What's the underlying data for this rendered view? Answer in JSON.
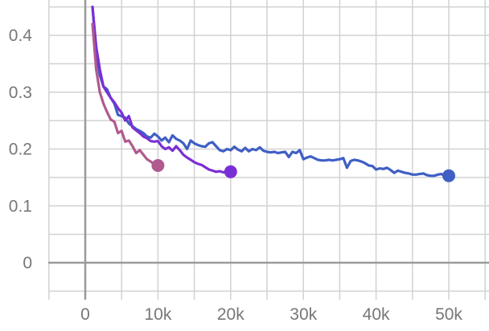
{
  "chart_data": {
    "type": "line",
    "title": "",
    "xlabel": "",
    "ylabel": "",
    "xlim": [
      -5000,
      55000
    ],
    "ylim": [
      -0.05,
      0.45
    ],
    "grid": true,
    "x_ticks": [
      0,
      10000,
      20000,
      30000,
      40000,
      50000
    ],
    "x_tick_labels": [
      "0",
      "10k",
      "20k",
      "30k",
      "40k",
      "50k"
    ],
    "y_ticks": [
      0,
      0.1,
      0.2,
      0.3,
      0.4
    ],
    "y_tick_labels": [
      "0",
      "0.1",
      "0.2",
      "0.3",
      "0.4"
    ],
    "colors": {
      "grid": "#d2d2d2",
      "zero_axis": "#9a9a9a",
      "tick_text": "#777777"
    },
    "series": [
      {
        "color": "#3f5fc4",
        "x": [
          1000,
          1500,
          2000,
          2500,
          3000,
          3500,
          4000,
          4500,
          5000,
          5500,
          6000,
          6500,
          7000,
          7500,
          8000,
          8500,
          9000,
          9500,
          10000,
          10500,
          11000,
          11500,
          12000,
          12500,
          13000,
          13500,
          14000,
          14500,
          15000,
          15500,
          16000,
          16500,
          17000,
          17500,
          18000,
          18500,
          19000,
          19500,
          20000,
          20500,
          21000,
          21500,
          22000,
          22500,
          23000,
          23500,
          24000,
          24500,
          25000,
          25500,
          26000,
          26500,
          27000,
          27500,
          28000,
          28500,
          29000,
          29500,
          30000,
          30500,
          31000,
          31500,
          32000,
          32500,
          33000,
          33500,
          34000,
          34500,
          35000,
          35500,
          36000,
          36500,
          37000,
          37500,
          38000,
          38500,
          39000,
          39500,
          40000,
          40500,
          41000,
          41500,
          42000,
          42500,
          43000,
          43500,
          44000,
          44500,
          45000,
          45500,
          46000,
          46500,
          47000,
          47500,
          48000,
          48500,
          49000,
          49500,
          50000
        ],
        "values": [
          0.45,
          0.37,
          0.33,
          0.31,
          0.305,
          0.29,
          0.28,
          0.26,
          0.258,
          0.255,
          0.245,
          0.24,
          0.235,
          0.232,
          0.228,
          0.222,
          0.22,
          0.227,
          0.222,
          0.215,
          0.22,
          0.212,
          0.224,
          0.218,
          0.215,
          0.21,
          0.2,
          0.215,
          0.21,
          0.207,
          0.205,
          0.204,
          0.21,
          0.212,
          0.205,
          0.198,
          0.196,
          0.2,
          0.198,
          0.204,
          0.199,
          0.196,
          0.202,
          0.196,
          0.2,
          0.198,
          0.203,
          0.197,
          0.195,
          0.194,
          0.195,
          0.193,
          0.194,
          0.195,
          0.186,
          0.195,
          0.193,
          0.198,
          0.182,
          0.185,
          0.187,
          0.184,
          0.181,
          0.18,
          0.18,
          0.181,
          0.18,
          0.181,
          0.182,
          0.184,
          0.167,
          0.179,
          0.181,
          0.18,
          0.178,
          0.175,
          0.171,
          0.17,
          0.164,
          0.166,
          0.165,
          0.167,
          0.163,
          0.158,
          0.162,
          0.16,
          0.158,
          0.157,
          0.155,
          0.155,
          0.156,
          0.157,
          0.154,
          0.153,
          0.153,
          0.155,
          0.156,
          0.152,
          0.153
        ]
      },
      {
        "color": "#7a2fd6",
        "x": [
          1000,
          1500,
          2000,
          2500,
          3000,
          3500,
          4000,
          4500,
          5000,
          5500,
          6000,
          6500,
          7000,
          7500,
          8000,
          8500,
          9000,
          9500,
          10000,
          10500,
          11000,
          11500,
          12000,
          12500,
          13000,
          13500,
          14000,
          14500,
          15000,
          15500,
          16000,
          16500,
          17000,
          17500,
          18000,
          18500,
          19000,
          19500,
          20000
        ],
        "values": [
          0.45,
          0.38,
          0.34,
          0.31,
          0.3,
          0.29,
          0.282,
          0.272,
          0.264,
          0.25,
          0.258,
          0.238,
          0.233,
          0.228,
          0.222,
          0.219,
          0.214,
          0.213,
          0.214,
          0.205,
          0.2,
          0.203,
          0.197,
          0.205,
          0.198,
          0.19,
          0.185,
          0.181,
          0.177,
          0.174,
          0.172,
          0.168,
          0.164,
          0.162,
          0.16,
          0.161,
          0.159,
          0.16,
          0.16
        ]
      },
      {
        "color": "#b05a8e",
        "x": [
          1000,
          1500,
          2000,
          2500,
          3000,
          3500,
          4000,
          4500,
          5000,
          5500,
          6000,
          6500,
          7000,
          7500,
          8000,
          8500,
          9000,
          9500,
          10000
        ],
        "values": [
          0.42,
          0.34,
          0.3,
          0.28,
          0.265,
          0.252,
          0.248,
          0.228,
          0.232,
          0.213,
          0.215,
          0.205,
          0.193,
          0.198,
          0.19,
          0.182,
          0.178,
          0.173,
          0.171
        ]
      }
    ]
  }
}
